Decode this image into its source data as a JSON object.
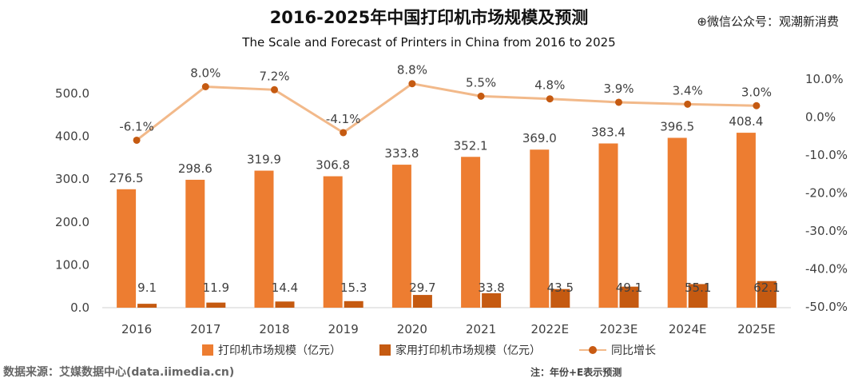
{
  "title": "2016-2025年中国打印机市场规模及预测",
  "subtitle": "The Scale and Forecast of Printers in China from 2016 to 2025",
  "watermark": "⊕微信公众号：观潮新消费",
  "source": "数据来源：艾媒数据中心(data.iimedia.cn)",
  "note": "注：年份+E表示预测",
  "colors": {
    "series1": "#ed7d31",
    "series2": "#c55a11",
    "growth_line": "#f2b98a",
    "growth_marker": "#c55a11"
  },
  "chart_data": {
    "type": "bar",
    "categories": [
      "2016",
      "2017",
      "2018",
      "2019",
      "2020",
      "2021",
      "2022E",
      "2023E",
      "2024E",
      "2025E"
    ],
    "series": [
      {
        "name": "打印机市场规模（亿元）",
        "values": [
          276.5,
          298.6,
          319.9,
          306.8,
          333.8,
          352.1,
          369.0,
          383.4,
          396.5,
          408.4
        ],
        "labels": [
          "276.5",
          "298.6",
          "319.9",
          "306.8",
          "333.8",
          "352.1",
          "369.0",
          "383.4",
          "396.5",
          "408.4"
        ]
      },
      {
        "name": "家用打印机市场规模（亿元）",
        "values": [
          9.1,
          11.9,
          14.4,
          15.3,
          29.7,
          33.8,
          43.5,
          49.1,
          55.1,
          62.1
        ],
        "labels": [
          "9.1",
          "11.9",
          "14.4",
          "15.3",
          "29.7",
          "33.8",
          "43.5",
          "49.1",
          "55.1",
          "62.1"
        ]
      },
      {
        "name": "同比增长",
        "type": "line",
        "axis": "right",
        "values": [
          -6.1,
          8.0,
          7.2,
          -4.1,
          8.8,
          5.5,
          4.8,
          3.9,
          3.4,
          3.0
        ],
        "labels": [
          "-6.1%",
          "8.0%",
          "7.2%",
          "-4.1%",
          "8.8%",
          "5.5%",
          "4.8%",
          "3.9%",
          "3.4%",
          "3.0%"
        ]
      }
    ],
    "ylim": [
      0,
      500
    ],
    "yticks": [
      "0.0",
      "100.0",
      "200.0",
      "300.0",
      "400.0",
      "500.0"
    ],
    "y2lim": [
      -50,
      10
    ],
    "y2ticks": [
      "-50.0%",
      "-40.0%",
      "-30.0%",
      "-20.0%",
      "-10.0%",
      "0.0%",
      "10.0%"
    ],
    "legend_position": "bottom",
    "grid": false
  }
}
